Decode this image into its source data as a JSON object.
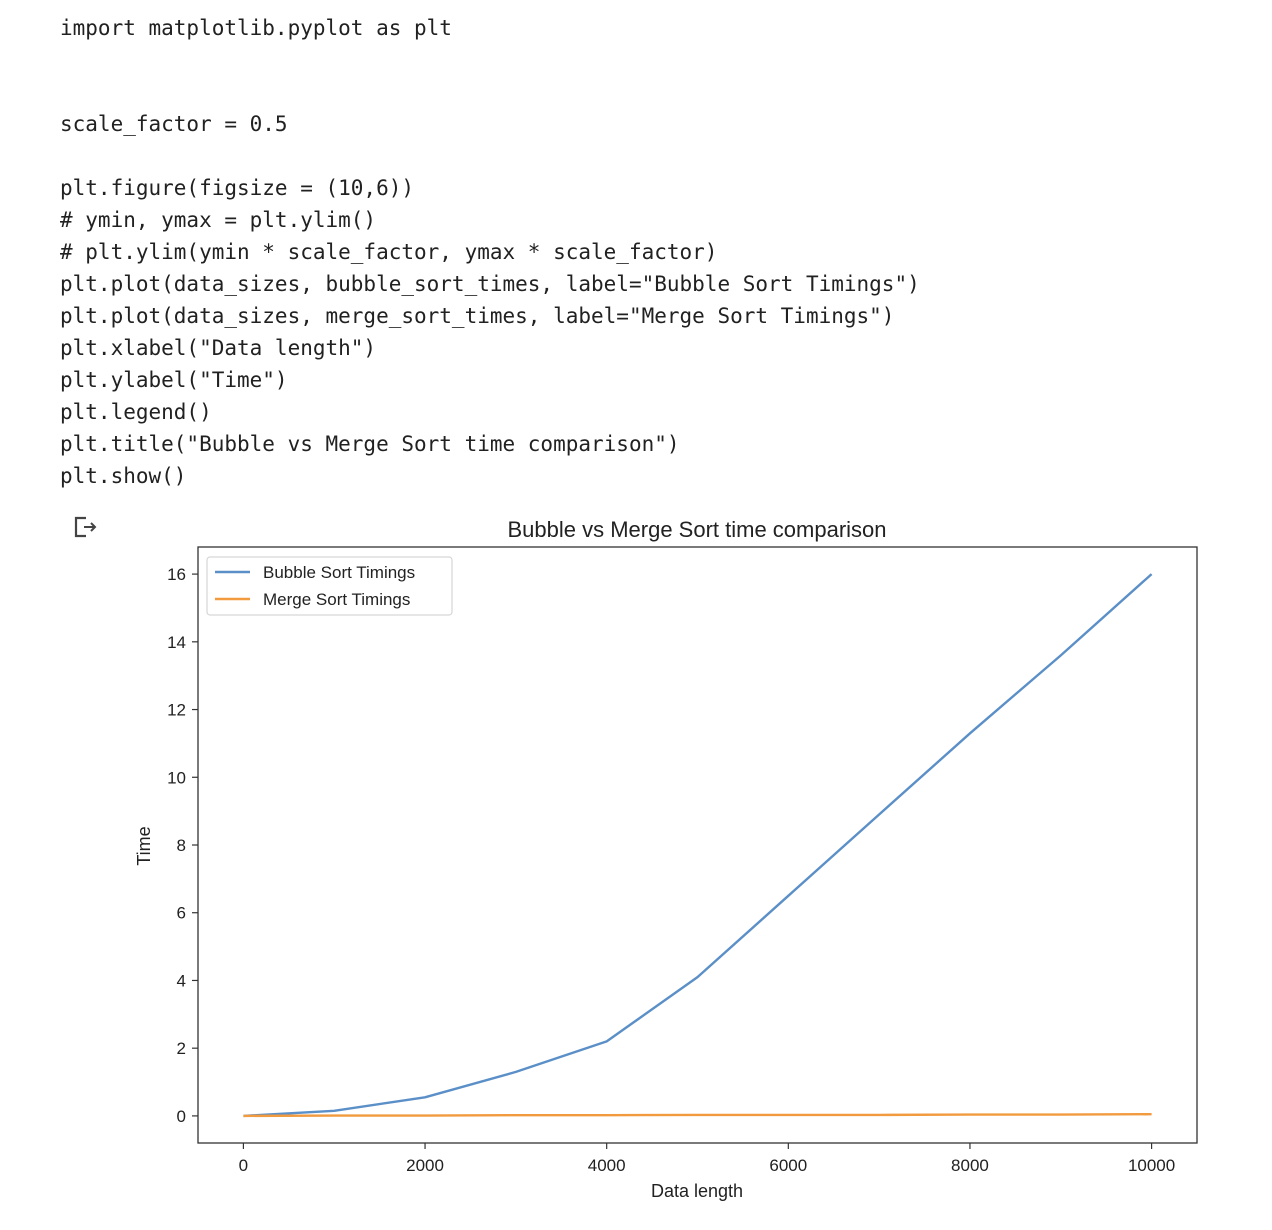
{
  "code": {
    "lines": [
      "import matplotlib.pyplot as plt",
      "",
      "",
      "scale_factor = 0.5",
      "",
      "plt.figure(figsize = (10,6))",
      "# ymin, ymax = plt.ylim()",
      "# plt.ylim(ymin * scale_factor, ymax * scale_factor)",
      "plt.plot(data_sizes, bubble_sort_times, label=\"Bubble Sort Timings\")",
      "plt.plot(data_sizes, merge_sort_times, label=\"Merge Sort Timings\")",
      "plt.xlabel(\"Data length\")",
      "plt.ylabel(\"Time\")",
      "plt.legend()",
      "plt.title(\"Bubble vs Merge Sort time comparison\")",
      "plt.show()"
    ]
  },
  "output": {
    "icon": "output-redirect-icon"
  },
  "chart_data": {
    "type": "line",
    "title": "Bubble vs Merge Sort time comparison",
    "xlabel": "Data length",
    "ylabel": "Time",
    "xlim": [
      -500,
      10500
    ],
    "ylim": [
      -0.8,
      16.8
    ],
    "xticks": [
      0,
      2000,
      4000,
      6000,
      8000,
      10000
    ],
    "xtick_labels": [
      "0",
      "2000",
      "4000",
      "6000",
      "8000",
      "10000"
    ],
    "yticks": [
      0,
      2,
      4,
      6,
      8,
      10,
      12,
      14,
      16
    ],
    "ytick_labels": [
      "0",
      "2",
      "4",
      "6",
      "8",
      "10",
      "12",
      "14",
      "16"
    ],
    "grid": false,
    "legend_position": "upper-left",
    "x": [
      0,
      1000,
      2000,
      3000,
      4000,
      5000,
      6000,
      7000,
      8000,
      9000,
      10000
    ],
    "series": [
      {
        "name": "Bubble Sort Timings",
        "color": "#5b8fc7",
        "values": [
          0.0,
          0.15,
          0.55,
          1.3,
          2.2,
          4.1,
          6.5,
          8.9,
          11.3,
          13.6,
          16.0
        ]
      },
      {
        "name": "Merge Sort Timings",
        "color": "#f29a3e",
        "values": [
          0.0,
          0.01,
          0.01,
          0.02,
          0.02,
          0.03,
          0.03,
          0.03,
          0.04,
          0.04,
          0.05
        ]
      }
    ]
  }
}
